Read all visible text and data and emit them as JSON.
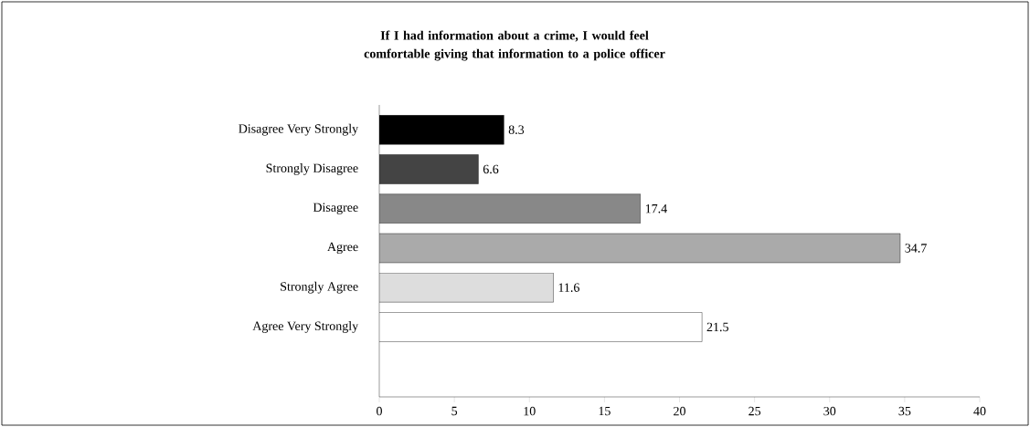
{
  "chart_data": {
    "type": "bar",
    "orientation": "horizontal",
    "title": "If I had information about a crime, I would feel comfortable giving that information to a police officer",
    "categories": [
      "Disagree Very Strongly",
      "Strongly Disagree",
      "Disagree",
      "Agree",
      "Strongly Agree",
      "Agree Very Strongly"
    ],
    "values": [
      8.3,
      6.6,
      17.4,
      34.7,
      11.6,
      21.5
    ],
    "colors": [
      "#000000",
      "#444444",
      "#888888",
      "#aaaaaa",
      "#dddddd",
      "#ffffff"
    ],
    "xlim": [
      0,
      40
    ],
    "xticks": [
      0,
      5,
      10,
      15,
      20,
      25,
      30,
      35,
      40
    ],
    "data_labels": true,
    "grid": false
  }
}
